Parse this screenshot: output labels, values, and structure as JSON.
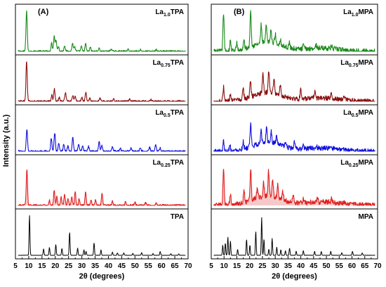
{
  "figure": {
    "ylabel": "Intensity (a.u.)",
    "colors": {
      "green": "#1a8a1a",
      "darkred": "#8b0d0d",
      "blue": "#1010e0",
      "red": "#e02020",
      "redfill": "#f6c9c9",
      "black": "#000000"
    }
  },
  "chart_data": [
    {
      "type": "line",
      "panel_label": "(A)",
      "xlabel": "2θ (degrees)",
      "xlim": [
        5,
        70
      ],
      "xticks": [
        5,
        10,
        15,
        20,
        25,
        30,
        35,
        40,
        45,
        50,
        55,
        60,
        65,
        70
      ],
      "series": [
        {
          "name_main": "La",
          "name_sub": "1.0",
          "name_suffix": "TPA",
          "color": "green",
          "peaks": [
            [
              9.2,
              1.0
            ],
            [
              18.6,
              0.2
            ],
            [
              19.6,
              0.38
            ],
            [
              20.3,
              0.28
            ],
            [
              21.2,
              0.12
            ],
            [
              23.5,
              0.15
            ],
            [
              26.5,
              0.2
            ],
            [
              27.3,
              0.12
            ],
            [
              29.8,
              0.12
            ],
            [
              31.4,
              0.18
            ],
            [
              33.2,
              0.1
            ],
            [
              36.5,
              0.08
            ],
            [
              41,
              0.06
            ],
            [
              47.5,
              0.05
            ],
            [
              52,
              0.05
            ],
            [
              58,
              0.04
            ]
          ]
        },
        {
          "name_main": "La",
          "name_sub": "0.75",
          "name_suffix": "TPA",
          "color": "darkred",
          "peaks": [
            [
              9.2,
              1.0
            ],
            [
              18.7,
              0.16
            ],
            [
              19.7,
              0.3
            ],
            [
              21.5,
              0.1
            ],
            [
              23.8,
              0.22
            ],
            [
              26.6,
              0.16
            ],
            [
              27.5,
              0.12
            ],
            [
              30,
              0.1
            ],
            [
              31.5,
              0.22
            ],
            [
              33,
              0.08
            ],
            [
              36.8,
              0.08
            ],
            [
              42,
              0.05
            ],
            [
              48,
              0.05
            ],
            [
              56,
              0.04
            ]
          ]
        },
        {
          "name_main": "La",
          "name_sub": "0.5",
          "name_suffix": "TPA",
          "color": "blue",
          "peaks": [
            [
              9.3,
              0.55
            ],
            [
              18.5,
              0.33
            ],
            [
              19.8,
              0.46
            ],
            [
              21.3,
              0.2
            ],
            [
              23.2,
              0.18
            ],
            [
              24.8,
              0.15
            ],
            [
              26.6,
              0.35
            ],
            [
              28.8,
              0.18
            ],
            [
              30.3,
              0.12
            ],
            [
              32.5,
              0.12
            ],
            [
              36.5,
              0.25
            ],
            [
              37.5,
              0.15
            ],
            [
              41.5,
              0.1
            ],
            [
              44.5,
              0.08
            ],
            [
              48.5,
              0.08
            ],
            [
              52,
              0.08
            ],
            [
              55.5,
              0.1
            ],
            [
              57.8,
              0.15
            ],
            [
              59.5,
              0.08
            ]
          ]
        },
        {
          "name_main": "La",
          "name_sub": "0.25",
          "name_suffix": "TPA",
          "color": "red",
          "peaks": [
            [
              9.3,
              0.82
            ],
            [
              17.8,
              0.12
            ],
            [
              19.6,
              0.35
            ],
            [
              20.6,
              0.2
            ],
            [
              22.2,
              0.2
            ],
            [
              23.5,
              0.25
            ],
            [
              24.8,
              0.15
            ],
            [
              26.2,
              0.2
            ],
            [
              27.5,
              0.3
            ],
            [
              29,
              0.15
            ],
            [
              31.4,
              0.3
            ],
            [
              33.5,
              0.12
            ],
            [
              35.2,
              0.12
            ],
            [
              37.6,
              0.26
            ],
            [
              41.5,
              0.1
            ],
            [
              46.5,
              0.08
            ],
            [
              50,
              0.08
            ],
            [
              54,
              0.06
            ],
            [
              58,
              0.05
            ]
          ]
        },
        {
          "name_main": "TPA",
          "name_sub": "",
          "name_suffix": "",
          "color": "black",
          "peaks": [
            [
              10.3,
              1.0
            ],
            [
              15.6,
              0.16
            ],
            [
              17.8,
              0.2
            ],
            [
              20.2,
              0.28
            ],
            [
              22.5,
              0.18
            ],
            [
              25.4,
              0.58
            ],
            [
              28.4,
              0.18
            ],
            [
              30.8,
              0.14
            ],
            [
              31.6,
              0.1
            ],
            [
              34.6,
              0.32
            ],
            [
              37.2,
              0.14
            ],
            [
              41.5,
              0.08
            ],
            [
              43.4,
              0.06
            ],
            [
              45.8,
              0.06
            ],
            [
              49.2,
              0.05
            ],
            [
              52.5,
              0.07
            ],
            [
              56.8,
              0.05
            ],
            [
              59.5,
              0.1
            ],
            [
              63.5,
              0.04
            ],
            [
              66.5,
              0.04
            ]
          ]
        }
      ]
    },
    {
      "type": "line",
      "panel_label": "(B)",
      "xlabel": "2θ (degrees)",
      "xlim": [
        5,
        70
      ],
      "xticks": [
        5,
        10,
        15,
        20,
        25,
        30,
        35,
        40,
        45,
        50,
        55,
        60,
        65,
        70
      ],
      "series": [
        {
          "name_main": "La",
          "name_sub": "1.0",
          "name_suffix": "MPA",
          "color": "green",
          "peaks": [
            [
              9.8,
              0.95
            ],
            [
              12.5,
              0.25
            ],
            [
              15,
              0.18
            ],
            [
              17.8,
              0.2
            ],
            [
              20.4,
              0.92
            ],
            [
              24.5,
              0.45
            ],
            [
              26.5,
              0.42
            ],
            [
              28.3,
              0.32
            ],
            [
              30,
              0.24
            ],
            [
              32,
              0.14
            ],
            [
              35.5,
              0.12
            ],
            [
              41,
              0.1
            ],
            [
              46,
              0.08
            ],
            [
              52,
              0.06
            ]
          ]
        },
        {
          "name_main": "La",
          "name_sub": "0.75",
          "name_suffix": "MPA",
          "color": "darkred",
          "peaks": [
            [
              9.8,
              0.35
            ],
            [
              12.5,
              0.2
            ],
            [
              17.5,
              0.25
            ],
            [
              20.3,
              0.4
            ],
            [
              25.2,
              0.45
            ],
            [
              27.5,
              0.55
            ],
            [
              29.5,
              0.35
            ],
            [
              32,
              0.25
            ],
            [
              40,
              0.25
            ],
            [
              45.5,
              0.2
            ],
            [
              52,
              0.15
            ],
            [
              57,
              0.1
            ]
          ]
        },
        {
          "name_main": "La",
          "name_sub": "0.5",
          "name_suffix": "MPA",
          "color": "blue",
          "peaks": [
            [
              9.8,
              0.25
            ],
            [
              12.3,
              0.15
            ],
            [
              17.5,
              0.2
            ],
            [
              20.4,
              0.55
            ],
            [
              24.5,
              0.3
            ],
            [
              26.6,
              0.4
            ],
            [
              28.4,
              0.3
            ],
            [
              30.5,
              0.2
            ],
            [
              34,
              0.12
            ],
            [
              37.5,
              0.15
            ],
            [
              41,
              0.1
            ],
            [
              46,
              0.08
            ]
          ]
        },
        {
          "name_main": "La",
          "name_sub": "0.25",
          "name_suffix": "MPA",
          "color": "red",
          "peaks": [
            [
              9.8,
              0.8
            ],
            [
              12.5,
              0.22
            ],
            [
              17.8,
              0.3
            ],
            [
              20.4,
              0.72
            ],
            [
              23,
              0.2
            ],
            [
              25.5,
              0.3
            ],
            [
              27.4,
              0.55
            ],
            [
              29,
              0.38
            ],
            [
              31,
              0.32
            ],
            [
              33,
              0.18
            ],
            [
              37,
              0.2
            ],
            [
              41,
              0.1
            ],
            [
              46.5,
              0.1
            ],
            [
              52,
              0.08
            ],
            [
              57,
              0.06
            ]
          ]
        },
        {
          "name_main": "MPA",
          "name_sub": "",
          "name_suffix": "",
          "color": "black",
          "peaks": [
            [
              9.5,
              0.25
            ],
            [
              10.5,
              0.3
            ],
            [
              11.5,
              0.45
            ],
            [
              12.5,
              0.35
            ],
            [
              15.3,
              0.15
            ],
            [
              18.8,
              0.4
            ],
            [
              20.1,
              0.25
            ],
            [
              22.4,
              0.6
            ],
            [
              24.7,
              0.95
            ],
            [
              25.6,
              0.4
            ],
            [
              27.5,
              0.15
            ],
            [
              28.8,
              0.42
            ],
            [
              30.6,
              0.2
            ],
            [
              32.2,
              0.14
            ],
            [
              34,
              0.12
            ],
            [
              35.6,
              0.18
            ],
            [
              38.2,
              0.1
            ],
            [
              41,
              0.12
            ],
            [
              45.4,
              0.1
            ],
            [
              48,
              0.1
            ],
            [
              51.7,
              0.1
            ],
            [
              56,
              0.07
            ],
            [
              60.2,
              0.1
            ],
            [
              64,
              0.06
            ]
          ]
        }
      ]
    }
  ]
}
